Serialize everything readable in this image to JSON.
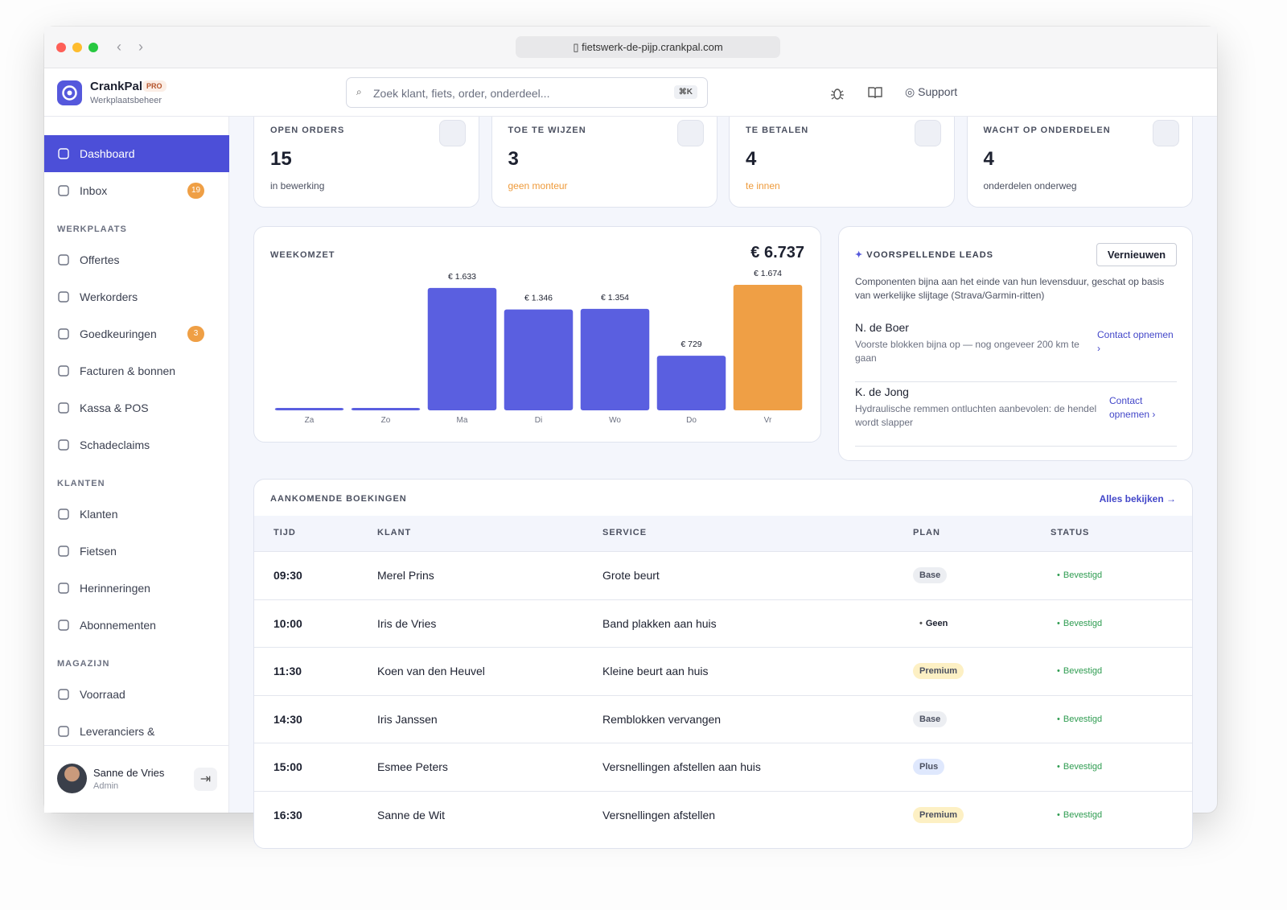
{
  "browser": {
    "url": "fietswerk-de-pijp.crankpal.com"
  },
  "brand": {
    "name": "CrankPal",
    "badge": "PRO",
    "subtitle": "Werkplaatsbeheer"
  },
  "search": {
    "placeholder": "Zoek klant, fiets, order, onderdeel...",
    "shortcut": "⌘K"
  },
  "header": {
    "support": "Support"
  },
  "sidebar": {
    "top": [
      {
        "label": "Dashboard",
        "active": true
      },
      {
        "label": "Inbox",
        "badge": 19
      }
    ],
    "sections": [
      {
        "title": "WERKPLAATS",
        "items": [
          {
            "label": "Offertes"
          },
          {
            "label": "Werkorders"
          },
          {
            "label": "Goedkeuringen",
            "badge": 3
          },
          {
            "label": "Facturen & bonnen"
          },
          {
            "label": "Kassa & POS"
          },
          {
            "label": "Schadeclaims"
          }
        ]
      },
      {
        "title": "KLANTEN",
        "items": [
          {
            "label": "Klanten"
          },
          {
            "label": "Fietsen"
          },
          {
            "label": "Herinneringen"
          },
          {
            "label": "Abonnementen"
          }
        ]
      },
      {
        "title": "MAGAZIJN",
        "items": [
          {
            "label": "Voorraad"
          },
          {
            "label": "Leveranciers &"
          }
        ]
      }
    ]
  },
  "user": {
    "name": "Sanne de Vries",
    "role": "Admin"
  },
  "stats": [
    {
      "label": "OPEN ORDERS",
      "value": 15,
      "note": "in bewerking",
      "note_color": "#4b5060"
    },
    {
      "label": "TOE TE WIJZEN",
      "value": 3,
      "note": "geen monteur",
      "note_color": "#ee9a3a"
    },
    {
      "label": "TE BETALEN",
      "value": 4,
      "note": "te innen",
      "note_color": "#ee9a3a"
    },
    {
      "label": "WACHT OP ONDERDELEN",
      "value": 4,
      "note": "onderdelen onderweg",
      "note_color": "#4b5060"
    }
  ],
  "chart_data": {
    "type": "bar",
    "title": "WEEKOMZET",
    "total": "€ 6.737",
    "categories": [
      "Za",
      "Zo",
      "Ma",
      "Di",
      "Wo",
      "Do",
      "Vr"
    ],
    "values": [
      0,
      0,
      1633,
      1346,
      1354,
      729,
      1674
    ],
    "value_labels": [
      null,
      null,
      "€ 1.633",
      "€ 1.346",
      "€ 1.354",
      "€ 729",
      "€ 1.674"
    ],
    "colors": [
      "#5a5fe0",
      "#5a5fe0",
      "#5a5fe0",
      "#5a5fe0",
      "#5a5fe0",
      "#5a5fe0",
      "#ef9f45"
    ]
  },
  "leads": {
    "title": "VOORSPELLENDE LEADS",
    "button": "Vernieuwen",
    "description": "Componenten bijna aan het einde van hun levensduur, geschat op basis van werkelijke slijtage (Strava/Garmin-ritten)",
    "items": [
      {
        "name": "N. de Boer",
        "text": "Voorste blokken bijna op — nog ongeveer 200 km te gaan",
        "action": "Contact opnemen ›"
      },
      {
        "name": "K. de Jong",
        "text": "Hydraulische remmen ontluchten aanbevolen: de hendel wordt slapper",
        "action": "Contact opnemen ›"
      }
    ]
  },
  "bookings": {
    "title": "AANKOMENDE BOEKINGEN",
    "link": "Alles bekijken →",
    "columns": [
      "TIJD",
      "KLANT",
      "SERVICE",
      "PLAN",
      "STATUS"
    ],
    "rows": [
      {
        "time": "09:30",
        "client": "Merel Prins",
        "service": "Grote beurt",
        "plan": "Base",
        "plan_color": "#eceef2",
        "status": "Bevestigd"
      },
      {
        "time": "10:00",
        "client": "Iris de Vries",
        "service": "Band plakken aan huis",
        "plan": "Geen",
        "plan_color": null,
        "status": "Bevestigd"
      },
      {
        "time": "11:30",
        "client": "Koen van den Heuvel",
        "service": "Kleine beurt aan huis",
        "plan": "Premium",
        "plan_color": "#fdf0c4",
        "status": "Bevestigd"
      },
      {
        "time": "14:30",
        "client": "Iris Janssen",
        "service": "Remblokken vervangen",
        "plan": "Base",
        "plan_color": "#eceef2",
        "status": "Bevestigd"
      },
      {
        "time": "15:00",
        "client": "Esmee Peters",
        "service": "Versnellingen afstellen aan huis",
        "plan": "Plus",
        "plan_color": "#dfe8fd",
        "status": "Bevestigd"
      },
      {
        "time": "16:30",
        "client": "Sanne de Wit",
        "service": "Versnellingen afstellen",
        "plan": "Premium",
        "plan_color": "#fdf0c4",
        "status": "Bevestigd"
      }
    ]
  }
}
